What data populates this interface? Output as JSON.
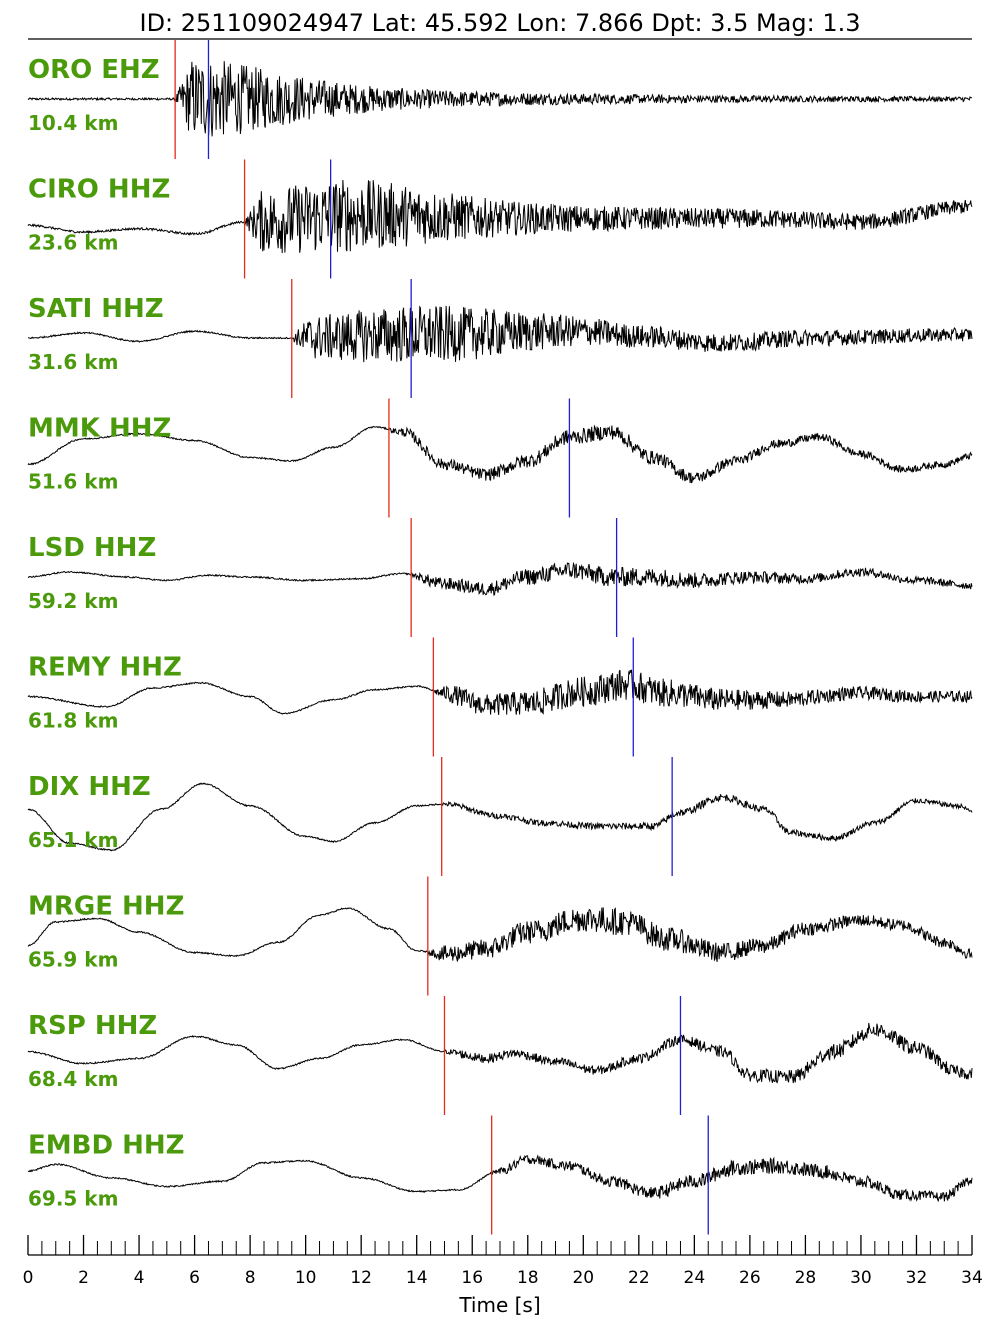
{
  "header": {
    "text": "ID: 251109024947 Lat:  45.592 Lon:   7.866 Dpt:     3.5 Mag:   1.3"
  },
  "colors": {
    "station_label": "#4a9a0b",
    "p_pick": "#e8291c",
    "s_pick": "#1f1fd6",
    "trace": "#000000"
  },
  "chart_data": {
    "type": "line",
    "title": "",
    "xlabel": "Time [s]",
    "ylabel": "",
    "xlim": [
      0,
      34
    ],
    "x_ticks": [
      0,
      2,
      4,
      6,
      8,
      10,
      12,
      14,
      16,
      18,
      20,
      22,
      24,
      26,
      28,
      30,
      32,
      34
    ],
    "minor_tick_step": 0.5,
    "grid": false,
    "traces": [
      {
        "station": "ORO EHZ",
        "distance": "10.4 km",
        "p_pick": 5.3,
        "s_pick": 6.5,
        "envelope": {
          "pre": 0.03,
          "p": 1.0,
          "peak": 6.5,
          "decay": 0.12
        },
        "lows": [
          [
            0,
            0.0
          ],
          [
            34,
            0.0
          ]
        ]
      },
      {
        "station": "CIRO HHZ",
        "distance": "23.6 km",
        "p_pick": 7.8,
        "s_pick": 10.9,
        "envelope": {
          "pre": 0.03,
          "p": 0.9,
          "peak": 11.5,
          "decay": 0.05
        },
        "lows": [
          [
            0,
            -0.2
          ],
          [
            2,
            -0.4
          ],
          [
            4,
            -0.3
          ],
          [
            6,
            -0.45
          ],
          [
            7.8,
            -0.1
          ],
          [
            12,
            0.1
          ],
          [
            18,
            0.0
          ],
          [
            26,
            0.0
          ],
          [
            30,
            -0.1
          ],
          [
            34,
            0.35
          ]
        ]
      },
      {
        "station": "SATI HHZ",
        "distance": "31.6 km",
        "p_pick": 9.5,
        "s_pick": 13.8,
        "envelope": {
          "pre": 0.02,
          "p": 0.7,
          "peak": 14.5,
          "decay": 0.05
        },
        "lows": [
          [
            0,
            0.0
          ],
          [
            2,
            0.15
          ],
          [
            4,
            -0.1
          ],
          [
            6,
            0.2
          ],
          [
            8,
            0.0
          ],
          [
            9.5,
            0.0
          ],
          [
            14,
            0.1
          ],
          [
            20,
            0.2
          ],
          [
            22,
            0.05
          ],
          [
            25,
            -0.15
          ],
          [
            28,
            0.0
          ],
          [
            34,
            0.1
          ]
        ]
      },
      {
        "station": "MMK HHZ",
        "distance": "51.6 km",
        "p_pick": 13.0,
        "s_pick": 19.5,
        "envelope": {
          "pre": 0.02,
          "p": 0.15,
          "peak": 20.5,
          "decay": 0.04
        },
        "lows": [
          [
            0,
            -0.2
          ],
          [
            2,
            0.55
          ],
          [
            4,
            0.7
          ],
          [
            6,
            0.5
          ],
          [
            8,
            0.0
          ],
          [
            9.5,
            -0.1
          ],
          [
            11,
            0.3
          ],
          [
            12.5,
            0.9
          ],
          [
            13.5,
            0.75
          ],
          [
            15,
            -0.2
          ],
          [
            16.5,
            -0.5
          ],
          [
            18,
            -0.1
          ],
          [
            19.5,
            0.6
          ],
          [
            21,
            0.75
          ],
          [
            22.5,
            0.0
          ],
          [
            24,
            -0.6
          ],
          [
            25.5,
            -0.1
          ],
          [
            27,
            0.4
          ],
          [
            28.5,
            0.6
          ],
          [
            30,
            0.1
          ],
          [
            31.5,
            -0.35
          ],
          [
            33,
            -0.2
          ],
          [
            34,
            0.05
          ]
        ]
      },
      {
        "station": "LSD HHZ",
        "distance": "59.2 km",
        "p_pick": 13.8,
        "s_pick": 21.2,
        "envelope": {
          "pre": 0.02,
          "p": 0.2,
          "peak": 21.5,
          "decay": 0.05
        },
        "lows": [
          [
            0,
            0.0
          ],
          [
            1.5,
            0.15
          ],
          [
            3.5,
            0.0
          ],
          [
            5,
            -0.1
          ],
          [
            6.5,
            0.05
          ],
          [
            8,
            0.0
          ],
          [
            10,
            -0.1
          ],
          [
            12,
            -0.05
          ],
          [
            13.5,
            0.1
          ],
          [
            15,
            -0.2
          ],
          [
            16.5,
            -0.35
          ],
          [
            18,
            0.0
          ],
          [
            19.5,
            0.2
          ],
          [
            21,
            0.0
          ],
          [
            22.5,
            0.0
          ],
          [
            24,
            -0.1
          ],
          [
            26,
            0.0
          ],
          [
            28,
            -0.05
          ],
          [
            30,
            0.15
          ],
          [
            32,
            -0.1
          ],
          [
            34,
            -0.25
          ]
        ]
      },
      {
        "station": "REMY HHZ",
        "distance": "61.8 km",
        "p_pick": 14.6,
        "s_pick": 21.8,
        "envelope": {
          "pre": 0.02,
          "p": 0.35,
          "peak": 21.5,
          "decay": 0.04
        },
        "lows": [
          [
            0,
            0.0
          ],
          [
            2.8,
            -0.3
          ],
          [
            4.5,
            0.25
          ],
          [
            6.2,
            0.4
          ],
          [
            8,
            0.0
          ],
          [
            9.2,
            -0.5
          ],
          [
            11,
            -0.1
          ],
          [
            12.5,
            0.2
          ],
          [
            14,
            0.3
          ],
          [
            15,
            0.1
          ],
          [
            16.5,
            -0.25
          ],
          [
            18,
            -0.2
          ],
          [
            20,
            0.15
          ],
          [
            21.5,
            0.35
          ],
          [
            23,
            0.1
          ],
          [
            25,
            -0.1
          ],
          [
            27,
            -0.1
          ],
          [
            30,
            0.1
          ],
          [
            32,
            0.0
          ],
          [
            34,
            0.0
          ]
        ]
      },
      {
        "station": "DIX HHZ",
        "distance": "65.1 km",
        "p_pick": 14.9,
        "s_pick": 23.2,
        "envelope": {
          "pre": 0.02,
          "p": 0.05,
          "peak": 24.5,
          "decay": 0.06
        },
        "lows": [
          [
            0,
            0.2
          ],
          [
            1.5,
            -0.8
          ],
          [
            3,
            -1.0
          ],
          [
            4.8,
            0.2
          ],
          [
            6.3,
            0.95
          ],
          [
            8,
            0.3
          ],
          [
            10,
            -0.6
          ],
          [
            11,
            -0.75
          ],
          [
            12.5,
            -0.2
          ],
          [
            14,
            0.3
          ],
          [
            15,
            0.35
          ],
          [
            17,
            0.0
          ],
          [
            18.5,
            -0.2
          ],
          [
            20.5,
            -0.3
          ],
          [
            22.5,
            -0.3
          ],
          [
            23.5,
            0.1
          ],
          [
            25,
            0.55
          ],
          [
            26.5,
            0.2
          ],
          [
            27.5,
            -0.5
          ],
          [
            29,
            -0.65
          ],
          [
            30.5,
            -0.2
          ],
          [
            32,
            0.45
          ],
          [
            33.5,
            0.3
          ],
          [
            34,
            0.15
          ]
        ]
      },
      {
        "station": "MRGE HHZ",
        "distance": "65.9 km",
        "p_pick": 14.4,
        "s_pick": null,
        "envelope": {
          "pre": 0.02,
          "p": 0.3,
          "peak": 21.0,
          "decay": 0.03
        },
        "lows": [
          [
            0,
            -0.3
          ],
          [
            1,
            0.4
          ],
          [
            2.5,
            0.5
          ],
          [
            4,
            0.1
          ],
          [
            6,
            -0.5
          ],
          [
            7.5,
            -0.6
          ],
          [
            9,
            -0.2
          ],
          [
            10.5,
            0.6
          ],
          [
            11.5,
            0.8
          ],
          [
            13,
            0.2
          ],
          [
            14,
            -0.45
          ],
          [
            15,
            -0.55
          ],
          [
            16.5,
            -0.4
          ],
          [
            18,
            0.1
          ],
          [
            20,
            0.5
          ],
          [
            21.5,
            0.4
          ],
          [
            23,
            -0.1
          ],
          [
            25,
            -0.5
          ],
          [
            26.5,
            -0.3
          ],
          [
            28,
            0.2
          ],
          [
            30,
            0.45
          ],
          [
            31.5,
            0.3
          ],
          [
            33,
            -0.2
          ],
          [
            34,
            -0.55
          ]
        ]
      },
      {
        "station": "RSP HHZ",
        "distance": "68.4 km",
        "p_pick": 15.0,
        "s_pick": 23.5,
        "envelope": {
          "pre": 0.02,
          "p": 0.15,
          "peak": 30.0,
          "decay": 0.0
        },
        "lows": [
          [
            0,
            0.1
          ],
          [
            2,
            -0.25
          ],
          [
            4,
            -0.1
          ],
          [
            6,
            0.55
          ],
          [
            7.5,
            0.3
          ],
          [
            9,
            -0.4
          ],
          [
            10.5,
            -0.1
          ],
          [
            12,
            0.3
          ],
          [
            13.5,
            0.45
          ],
          [
            15,
            0.1
          ],
          [
            16.5,
            -0.1
          ],
          [
            17.5,
            0.05
          ],
          [
            19,
            -0.2
          ],
          [
            20.5,
            -0.45
          ],
          [
            22,
            -0.1
          ],
          [
            23.5,
            0.45
          ],
          [
            25,
            0.1
          ],
          [
            26,
            -0.6
          ],
          [
            27.5,
            -0.65
          ],
          [
            29,
            0.1
          ],
          [
            30.5,
            0.75
          ],
          [
            32,
            0.2
          ],
          [
            33.5,
            -0.5
          ],
          [
            34,
            -0.55
          ]
        ]
      },
      {
        "station": "EMBD HHZ",
        "distance": "69.5 km",
        "p_pick": 16.7,
        "s_pick": 24.5,
        "envelope": {
          "pre": 0.02,
          "p": 0.15,
          "peak": 26.5,
          "decay": 0.02
        },
        "lows": [
          [
            0,
            0.1
          ],
          [
            1,
            0.3
          ],
          [
            3,
            -0.1
          ],
          [
            5,
            -0.35
          ],
          [
            7,
            -0.2
          ],
          [
            8.5,
            0.35
          ],
          [
            10,
            0.4
          ],
          [
            12,
            -0.1
          ],
          [
            14,
            -0.5
          ],
          [
            15.5,
            -0.45
          ],
          [
            17,
            0.1
          ],
          [
            18,
            0.45
          ],
          [
            19.5,
            0.25
          ],
          [
            21,
            -0.2
          ],
          [
            22.5,
            -0.55
          ],
          [
            24,
            -0.2
          ],
          [
            25.5,
            0.2
          ],
          [
            27,
            0.25
          ],
          [
            28.5,
            0.1
          ],
          [
            30,
            -0.2
          ],
          [
            31.5,
            -0.6
          ],
          [
            33,
            -0.65
          ],
          [
            34,
            -0.15
          ]
        ]
      }
    ]
  }
}
